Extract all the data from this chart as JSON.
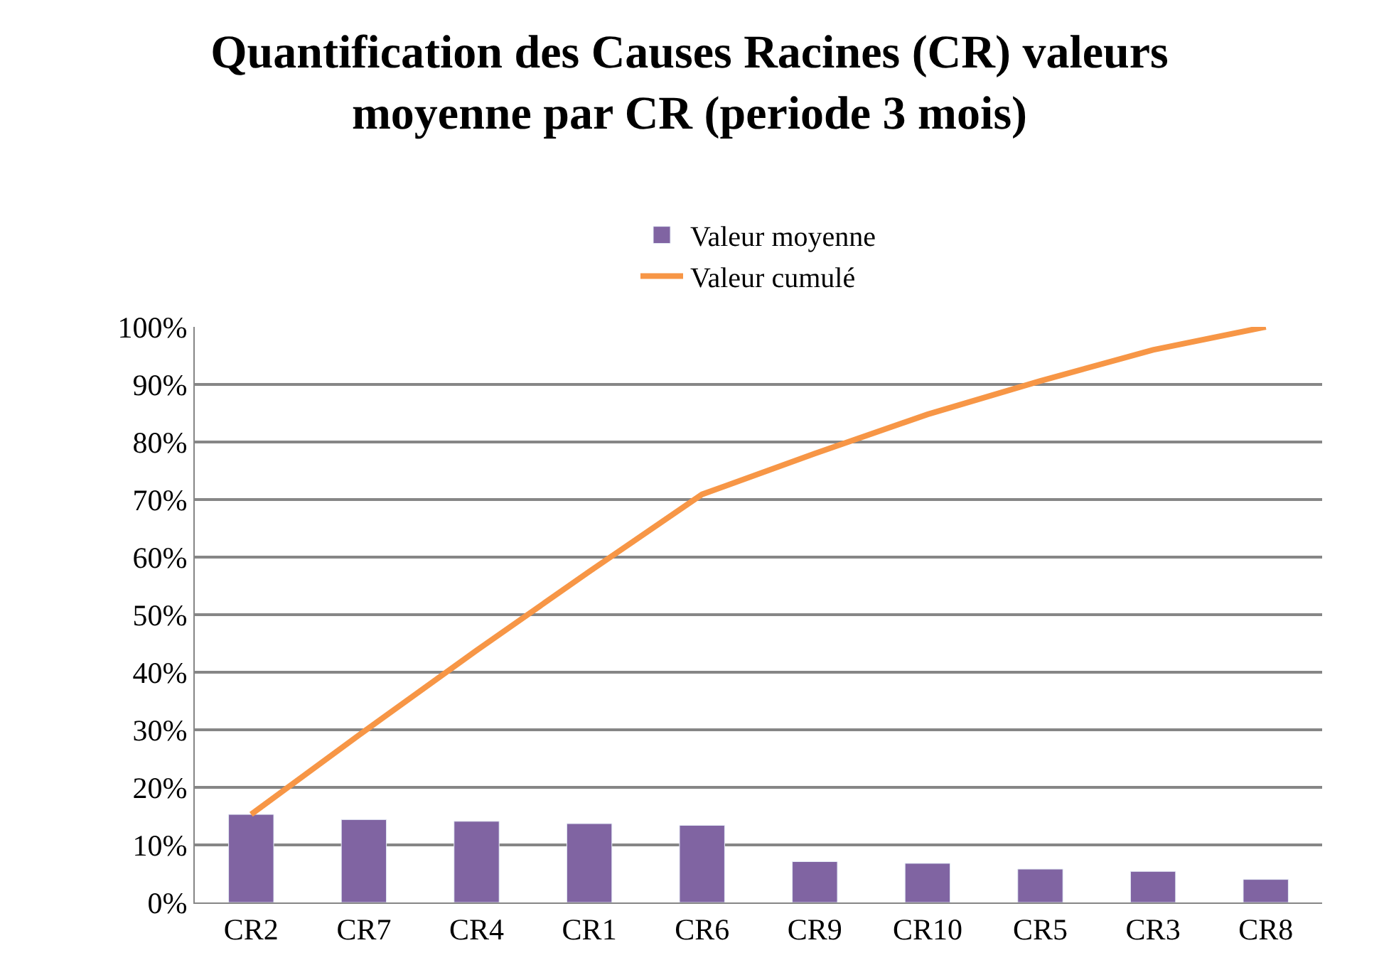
{
  "chart_data": {
    "type": "bar",
    "title": "Quantification des Causes Racines (CR) valeurs moyenne par CR (periode 3 mois)",
    "categories": [
      "CR2",
      "CR7",
      "CR4",
      "CR1",
      "CR6",
      "CR9",
      "CR10",
      "CR5",
      "CR3",
      "CR8"
    ],
    "series": [
      {
        "name": "Valeur moyenne",
        "color": "#8064a2",
        "values": [
          15.3,
          14.4,
          14.1,
          13.7,
          13.4,
          7.1,
          6.8,
          5.8,
          5.4,
          4.0
        ]
      },
      {
        "name": "Valeur cumulé",
        "type": "line",
        "color": "#f79646",
        "values": [
          15.3,
          29.7,
          43.8,
          57.5,
          70.9,
          78.0,
          84.8,
          90.6,
          96.0,
          100
        ]
      }
    ],
    "ylim": [
      0,
      100
    ],
    "yticks": [
      {
        "value": 0,
        "label": "0%"
      },
      {
        "value": 10,
        "label": "10%"
      },
      {
        "value": 20,
        "label": "20%"
      },
      {
        "value": 30,
        "label": "30%"
      },
      {
        "value": 40,
        "label": "40%"
      },
      {
        "value": 50,
        "label": "50%"
      },
      {
        "value": 60,
        "label": "60%"
      },
      {
        "value": 70,
        "label": "70%"
      },
      {
        "value": 80,
        "label": "80%"
      },
      {
        "value": 90,
        "label": "90%"
      },
      {
        "value": 100,
        "label": "100%"
      }
    ],
    "grid": "y",
    "legend": "top",
    "marker": "none",
    "line_style": "solid"
  }
}
